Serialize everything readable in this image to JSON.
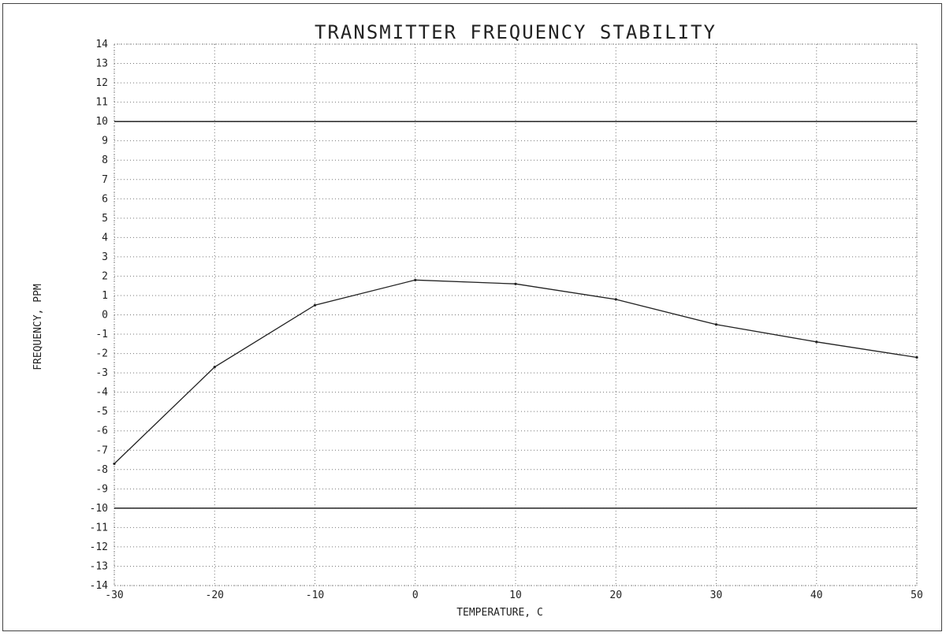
{
  "chart_data": {
    "type": "line",
    "title": "TRANSMITTER FREQUENCY STABILITY",
    "xlabel": "TEMPERATURE,  C",
    "ylabel": "FREQUENCY, PPM",
    "xlim": [
      -30,
      50
    ],
    "ylim": [
      -14,
      14
    ],
    "xticks": [
      -30,
      -20,
      -10,
      0,
      10,
      20,
      30,
      40,
      50
    ],
    "xtick_labels": [
      "-30",
      "-20",
      "-10",
      "0",
      "10",
      "20",
      "30",
      "40",
      "50"
    ],
    "yticks": [
      14,
      13,
      12,
      11,
      10,
      9,
      8,
      7,
      6,
      5,
      4,
      3,
      2,
      1,
      0,
      -1,
      -2,
      -3,
      -4,
      -5,
      -6,
      -7,
      -8,
      -9,
      -10,
      -11,
      -12,
      -13,
      -14
    ],
    "ytick_labels": [
      "14",
      "13",
      "12",
      "11",
      "10",
      "9",
      "8",
      "7",
      "6",
      "5",
      "4",
      "3",
      "2",
      "1",
      "0",
      "-1",
      "-2",
      "-3",
      "-4",
      "-5",
      "-6",
      "-7",
      "-8",
      "-9",
      "-10",
      "-11",
      "-12",
      "-13",
      "-14"
    ],
    "grid": true,
    "reference_lines": [
      10,
      -10
    ],
    "series": [
      {
        "x": [
          -30,
          -20,
          -10,
          0,
          10,
          20,
          30,
          40,
          50
        ],
        "y": [
          -7.7,
          -2.7,
          0.5,
          1.8,
          1.6,
          0.8,
          -0.5,
          -1.4,
          -2.2
        ]
      }
    ]
  }
}
